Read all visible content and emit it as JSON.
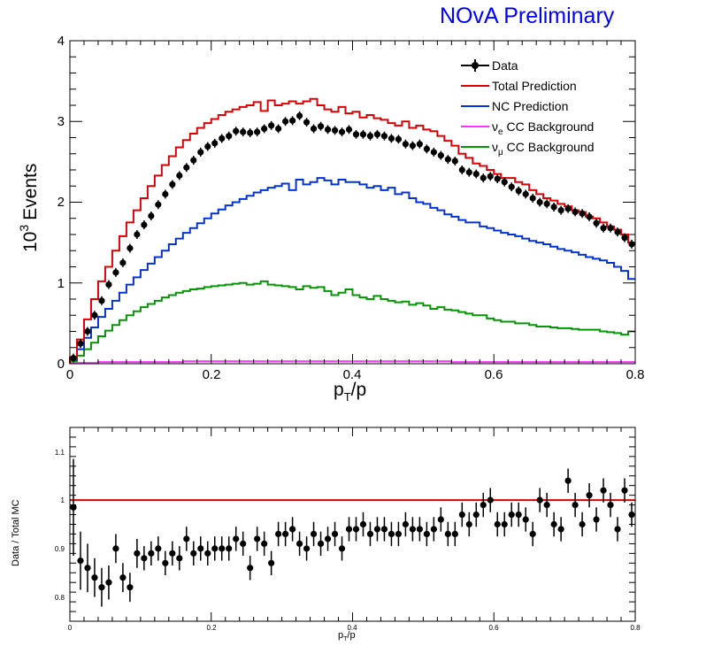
{
  "header": {
    "title": "NOvA Preliminary",
    "title_color": "#0000ff"
  },
  "chart_data": [
    {
      "type": "line",
      "ylabel_base": "10",
      "ylabel_exp": "3",
      "ylabel_text": "Events",
      "xlabel_main": "p",
      "xlabel_sub": "T",
      "xlabel_tail": "/p",
      "xlim": [
        0,
        0.8
      ],
      "ylim": [
        0,
        4
      ],
      "x_ticks": [
        "0",
        "0.2",
        "0.4",
        "0.6",
        "0.8"
      ],
      "y_ticks": [
        "0",
        "1",
        "2",
        "3",
        "4"
      ],
      "legend_position": "top-right",
      "legend": {
        "data": "Data",
        "total": "Total Prediction",
        "nc": "NC Prediction",
        "nue_nu": "ν",
        "nue_sub": "e",
        "nue_tail": " CC Background",
        "numu_nu": "ν",
        "numu_sub": "μ",
        "numu_tail": " CC Background"
      },
      "colors": {
        "total": "#e00000",
        "nc": "#0033dd",
        "nue": "#ff33ff",
        "numu": "#009900",
        "data": "#000000"
      },
      "bin_width": 0.01,
      "series": {
        "total": [
          0.08,
          0.3,
          0.55,
          0.8,
          1.02,
          1.2,
          1.4,
          1.58,
          1.75,
          1.9,
          2.05,
          2.2,
          2.33,
          2.46,
          2.57,
          2.68,
          2.77,
          2.85,
          2.92,
          2.98,
          3.03,
          3.08,
          3.12,
          3.15,
          3.18,
          3.2,
          3.24,
          3.13,
          3.26,
          3.2,
          3.22,
          3.25,
          3.22,
          3.25,
          3.28,
          3.2,
          3.15,
          3.12,
          3.18,
          3.1,
          3.12,
          3.05,
          3.08,
          3.04,
          3.02,
          2.98,
          2.95,
          3.0,
          2.92,
          2.95,
          2.9,
          2.88,
          2.82,
          2.76,
          2.7,
          2.6,
          2.55,
          2.48,
          2.45,
          2.4,
          2.35,
          2.3,
          2.3,
          2.25,
          2.22,
          2.15,
          2.1,
          2.05,
          2.02,
          1.98,
          1.95,
          1.9,
          1.88,
          1.82,
          1.8,
          1.75,
          1.7,
          1.66,
          1.6,
          1.5
        ],
        "nc": [
          0.05,
          0.18,
          0.32,
          0.45,
          0.58,
          0.68,
          0.78,
          0.88,
          0.98,
          1.07,
          1.16,
          1.24,
          1.32,
          1.4,
          1.48,
          1.55,
          1.62,
          1.68,
          1.74,
          1.8,
          1.86,
          1.91,
          1.96,
          2.0,
          2.04,
          2.08,
          2.12,
          2.15,
          2.18,
          2.2,
          2.23,
          2.15,
          2.28,
          2.22,
          2.25,
          2.3,
          2.27,
          2.22,
          2.28,
          2.25,
          2.25,
          2.22,
          2.18,
          2.2,
          2.15,
          2.18,
          2.1,
          2.12,
          2.05,
          2.0,
          1.98,
          1.93,
          1.9,
          1.85,
          1.82,
          1.78,
          1.75,
          1.75,
          1.7,
          1.68,
          1.65,
          1.62,
          1.6,
          1.58,
          1.55,
          1.52,
          1.5,
          1.48,
          1.45,
          1.42,
          1.4,
          1.38,
          1.35,
          1.32,
          1.3,
          1.28,
          1.25,
          1.2,
          1.15,
          1.05
        ],
        "numu": [
          0.03,
          0.1,
          0.18,
          0.26,
          0.34,
          0.41,
          0.48,
          0.54,
          0.6,
          0.65,
          0.7,
          0.74,
          0.78,
          0.82,
          0.85,
          0.88,
          0.9,
          0.92,
          0.93,
          0.95,
          0.96,
          0.97,
          0.98,
          0.99,
          1.0,
          0.98,
          0.99,
          1.02,
          0.98,
          0.97,
          0.96,
          0.95,
          0.92,
          0.96,
          0.94,
          0.95,
          0.9,
          0.85,
          0.88,
          0.92,
          0.85,
          0.82,
          0.8,
          0.84,
          0.8,
          0.78,
          0.76,
          0.77,
          0.73,
          0.75,
          0.72,
          0.68,
          0.7,
          0.67,
          0.66,
          0.64,
          0.62,
          0.6,
          0.6,
          0.56,
          0.54,
          0.52,
          0.52,
          0.5,
          0.5,
          0.48,
          0.46,
          0.46,
          0.45,
          0.44,
          0.44,
          0.43,
          0.42,
          0.42,
          0.42,
          0.4,
          0.39,
          0.38,
          0.36,
          0.4
        ],
        "nue": [
          0.01,
          0.01,
          0.01,
          0.01,
          0.02,
          0.02,
          0.02,
          0.02,
          0.02,
          0.02,
          0.02,
          0.02,
          0.02,
          0.02,
          0.02,
          0.02,
          0.03,
          0.03,
          0.03,
          0.03,
          0.03,
          0.03,
          0.03,
          0.03,
          0.03,
          0.03,
          0.03,
          0.03,
          0.03,
          0.03,
          0.03,
          0.03,
          0.03,
          0.03,
          0.03,
          0.03,
          0.03,
          0.03,
          0.03,
          0.03,
          0.03,
          0.03,
          0.03,
          0.03,
          0.03,
          0.03,
          0.03,
          0.03,
          0.03,
          0.03,
          0.03,
          0.03,
          0.03,
          0.03,
          0.02,
          0.02,
          0.02,
          0.02,
          0.02,
          0.02,
          0.02,
          0.02,
          0.02,
          0.02,
          0.02,
          0.02,
          0.02,
          0.02,
          0.02,
          0.02,
          0.02,
          0.02,
          0.02,
          0.02,
          0.02,
          0.02,
          0.02,
          0.02,
          0.02,
          0.02
        ],
        "data": [
          0.07,
          0.25,
          0.4,
          0.6,
          0.78,
          0.98,
          1.13,
          1.25,
          1.43,
          1.6,
          1.72,
          1.83,
          1.97,
          2.1,
          2.22,
          2.33,
          2.43,
          2.52,
          2.62,
          2.69,
          2.73,
          2.79,
          2.82,
          2.88,
          2.87,
          2.86,
          2.87,
          2.91,
          2.95,
          2.91,
          3.0,
          3.01,
          3.07,
          2.99,
          2.91,
          2.94,
          2.9,
          2.89,
          2.87,
          2.9,
          2.84,
          2.84,
          2.82,
          2.84,
          2.82,
          2.79,
          2.78,
          2.72,
          2.7,
          2.72,
          2.66,
          2.62,
          2.58,
          2.53,
          2.51,
          2.4,
          2.37,
          2.35,
          2.3,
          2.32,
          2.29,
          2.25,
          2.19,
          2.14,
          2.1,
          2.05,
          2.0,
          1.98,
          1.94,
          1.9,
          1.92,
          1.88,
          1.86,
          1.82,
          1.74,
          1.68,
          1.68,
          1.63,
          1.56,
          1.48
        ]
      }
    },
    {
      "type": "scatter",
      "ylabel": "Data / Total MC",
      "xlabel_main": "p",
      "xlabel_sub": "T",
      "xlabel_tail": "/p",
      "xlim": [
        0,
        0.8
      ],
      "ylim": [
        0.75,
        1.15
      ],
      "x_ticks": [
        "0",
        "0.2",
        "0.4",
        "0.6",
        "0.8"
      ],
      "y_ticks": [
        "0.8",
        "0.9",
        "1",
        "1.1"
      ],
      "reference_line": 1.0,
      "reference_color": "#e00000",
      "values": [
        0.985,
        0.875,
        0.86,
        0.84,
        0.82,
        0.83,
        0.9,
        0.84,
        0.82,
        0.89,
        0.88,
        0.89,
        0.9,
        0.87,
        0.89,
        0.88,
        0.92,
        0.89,
        0.9,
        0.89,
        0.9,
        0.9,
        0.9,
        0.92,
        0.91,
        0.86,
        0.92,
        0.91,
        0.87,
        0.93,
        0.93,
        0.94,
        0.91,
        0.9,
        0.93,
        0.91,
        0.92,
        0.93,
        0.9,
        0.94,
        0.94,
        0.95,
        0.93,
        0.94,
        0.94,
        0.93,
        0.93,
        0.95,
        0.94,
        0.94,
        0.93,
        0.94,
        0.96,
        0.93,
        0.93,
        0.97,
        0.95,
        0.97,
        0.99,
        1.0,
        0.95,
        0.95,
        0.97,
        0.97,
        0.96,
        0.93,
        1.0,
        0.99,
        0.95,
        0.94,
        1.04,
        0.99,
        0.95,
        1.01,
        0.96,
        1.02,
        0.99,
        0.94,
        1.02,
        0.97
      ],
      "errors": [
        0.1,
        0.06,
        0.05,
        0.04,
        0.04,
        0.035,
        0.03,
        0.03,
        0.03,
        0.03,
        0.025,
        0.025,
        0.025,
        0.025,
        0.025,
        0.025,
        0.025,
        0.025,
        0.025,
        0.025,
        0.025,
        0.025,
        0.025,
        0.025,
        0.025,
        0.025,
        0.025,
        0.025,
        0.025,
        0.025,
        0.025,
        0.025,
        0.025,
        0.025,
        0.025,
        0.025,
        0.025,
        0.025,
        0.025,
        0.025,
        0.025,
        0.025,
        0.025,
        0.025,
        0.025,
        0.025,
        0.025,
        0.025,
        0.025,
        0.025,
        0.025,
        0.025,
        0.025,
        0.025,
        0.025,
        0.025,
        0.025,
        0.025,
        0.025,
        0.025,
        0.025,
        0.025,
        0.025,
        0.025,
        0.025,
        0.025,
        0.025,
        0.025,
        0.025,
        0.025,
        0.025,
        0.025,
        0.025,
        0.025,
        0.025,
        0.025,
        0.025,
        0.025,
        0.025,
        0.025
      ]
    }
  ]
}
